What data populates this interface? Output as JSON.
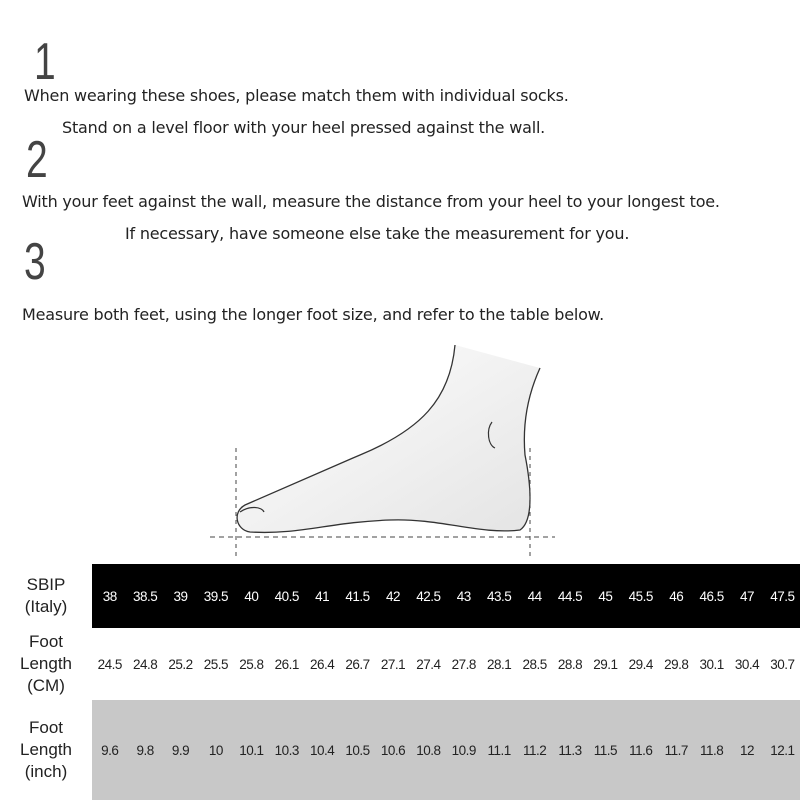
{
  "steps": [
    {
      "number": "1",
      "lines": [
        "When wearing these shoes, please match them with individual socks.",
        "Stand on a level floor with your heel pressed against the wall."
      ]
    },
    {
      "number": "2",
      "lines": [
        "With your feet against the wall, measure the distance from your heel to your longest toe.",
        "If necessary, have someone else take the measurement for you."
      ]
    },
    {
      "number": "3",
      "lines": [
        "Measure both feet, using the longer foot size, and refer to the table below."
      ]
    }
  ],
  "table": {
    "rows": [
      {
        "label": [
          "SBIP",
          "(Italy)"
        ],
        "values": [
          "38",
          "38.5",
          "39",
          "39.5",
          "40",
          "40.5",
          "41",
          "41.5",
          "42",
          "42.5",
          "43",
          "43.5",
          "44",
          "44.5",
          "45",
          "45.5",
          "46",
          "46.5",
          "47",
          "47.5"
        ],
        "background": "#000000"
      },
      {
        "label": [
          "Foot",
          "Length",
          "(CM)"
        ],
        "values": [
          "24.5",
          "24.8",
          "25.2",
          "25.5",
          "25.8",
          "26.1",
          "26.4",
          "26.7",
          "27.1",
          "27.4",
          "27.8",
          "28.1",
          "28.5",
          "28.8",
          "29.1",
          "29.4",
          "29.8",
          "30.1",
          "30.4",
          "30.7"
        ],
        "background": "#ffffff"
      },
      {
        "label": [
          "Foot",
          "Length",
          "(inch)"
        ],
        "values": [
          "9.6",
          "9.8",
          "9.9",
          "10",
          "10.1",
          "10.3",
          "10.4",
          "10.5",
          "10.6",
          "10.8",
          "10.9",
          "11.1",
          "11.2",
          "11.3",
          "11.5",
          "11.6",
          "11.7",
          "11.8",
          "12",
          "12.1"
        ],
        "background": "#c8c8c8"
      }
    ]
  }
}
